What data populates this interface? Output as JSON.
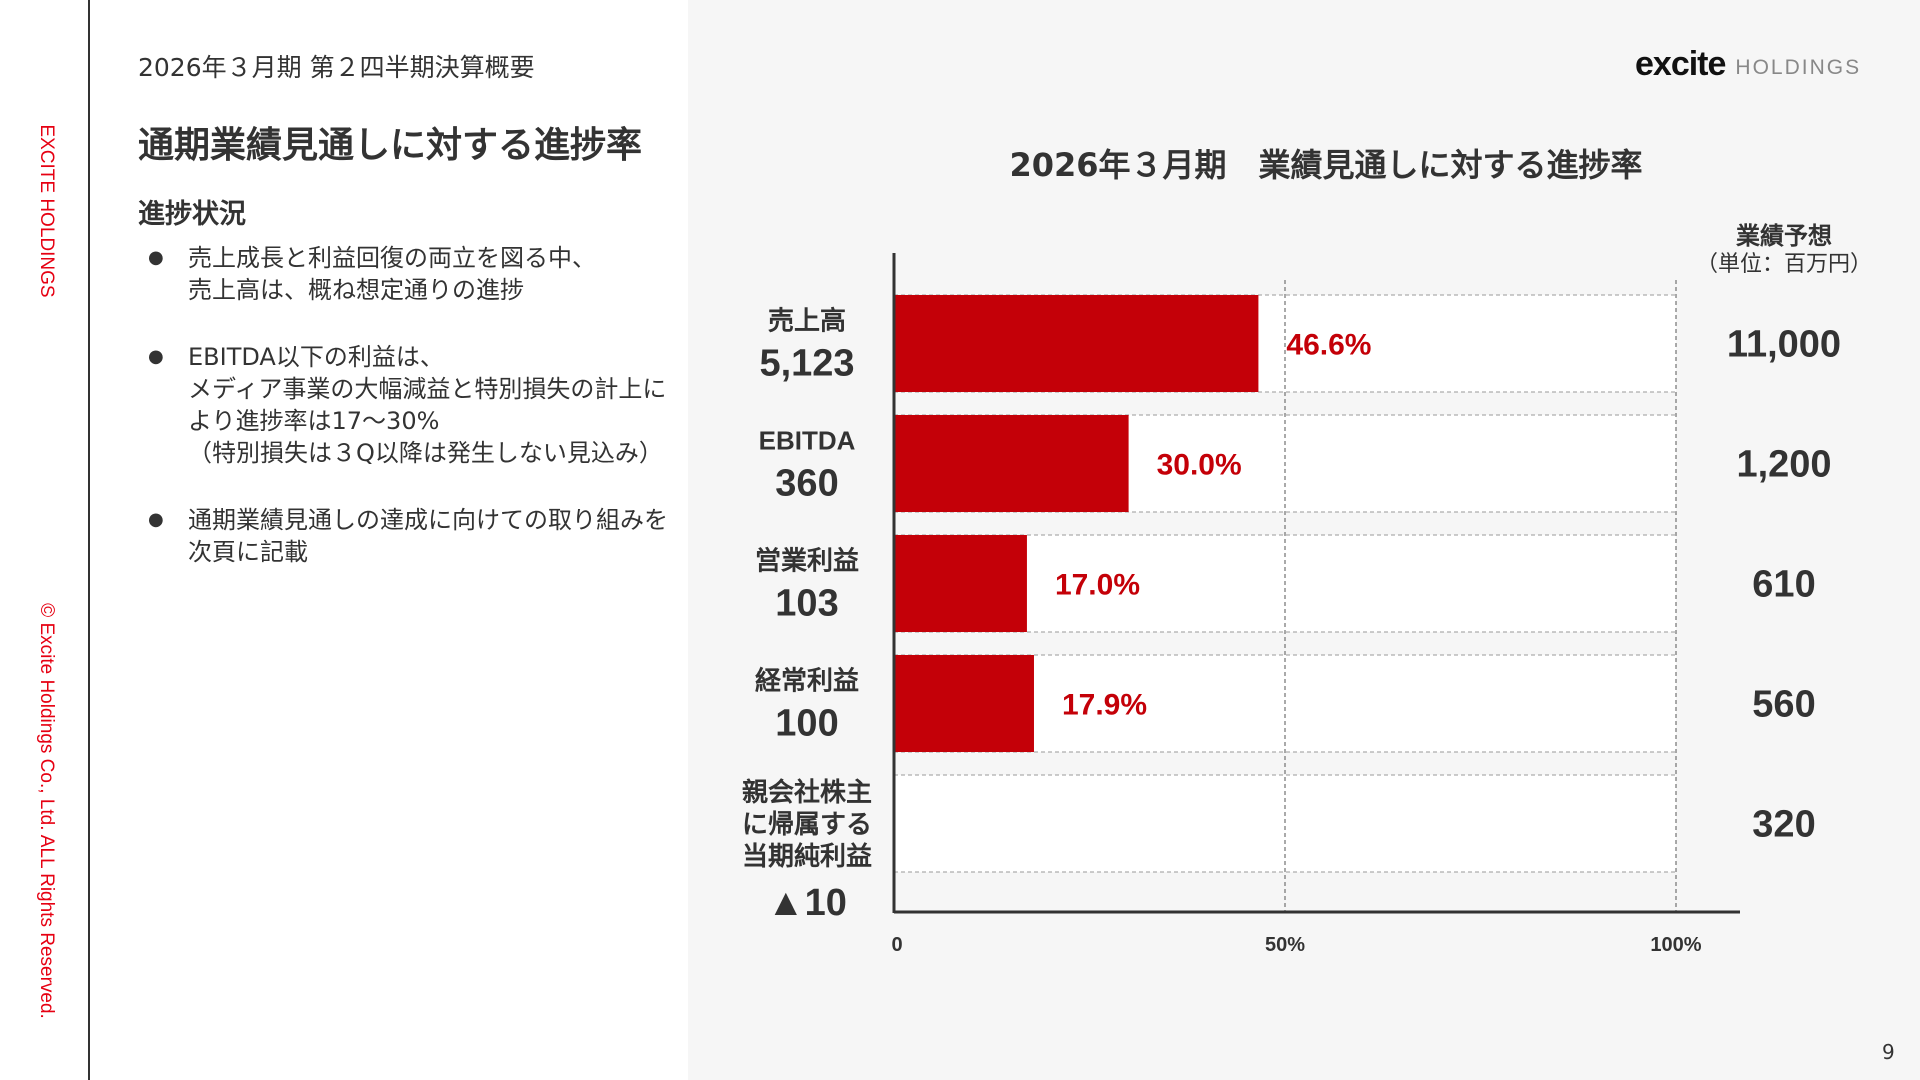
{
  "side": {
    "brand": "EXCITE HOLDINGS",
    "copyright": "© Excite Holdings Co., Ltd. ALL Rights Reserved."
  },
  "header": {
    "subtitle": "2026年３月期 第２四半期決算概要",
    "title": "通期業績見通しに対する進捗率",
    "section": "進捗状況"
  },
  "bullets": [
    "売上成長と利益回復の両立を図る中、\n売上高は、概ね想定通りの進捗",
    "EBITDA以下の利益は、\nメディア事業の大幅減益と特別損失の計上により進捗率は17～30%\n（特別損失は３Q以降は発生しない見込み）",
    "通期業績見通しの達成に向けての取り組みを次頁に記載"
  ],
  "bullet_glyph": "●",
  "logo": {
    "mark": "excite",
    "text": "HOLDINGS"
  },
  "forecast_header": {
    "title": "業績予想",
    "unit": "（単位：百万円）"
  },
  "page_number": "9",
  "colors": {
    "bar": "#c40008",
    "label": "#c40008",
    "brand": "#e60012"
  },
  "chart_data": {
    "type": "bar",
    "orientation": "horizontal",
    "title": "2026年３月期　業績見通しに対する進捗率",
    "xlim": [
      0,
      100
    ],
    "x_ticks": [
      "0",
      "50%",
      "100%"
    ],
    "categories": [
      {
        "name": "売上高",
        "actual": "5,123",
        "forecast": "11,000",
        "progress": 46.6,
        "label": "46.6%"
      },
      {
        "name": "EBITDA",
        "actual": "360",
        "forecast": "1,200",
        "progress": 30.0,
        "label": "30.0%"
      },
      {
        "name": "営業利益",
        "actual": "103",
        "forecast": "610",
        "progress": 17.0,
        "label": "17.0%"
      },
      {
        "name": "経常利益",
        "actual": "100",
        "forecast": "560",
        "progress": 17.9,
        "label": "17.9%"
      },
      {
        "name": "親会社株主\nに帰属する\n当期純利益",
        "actual": "▲10",
        "forecast": "320",
        "progress": null,
        "label": ""
      }
    ]
  }
}
